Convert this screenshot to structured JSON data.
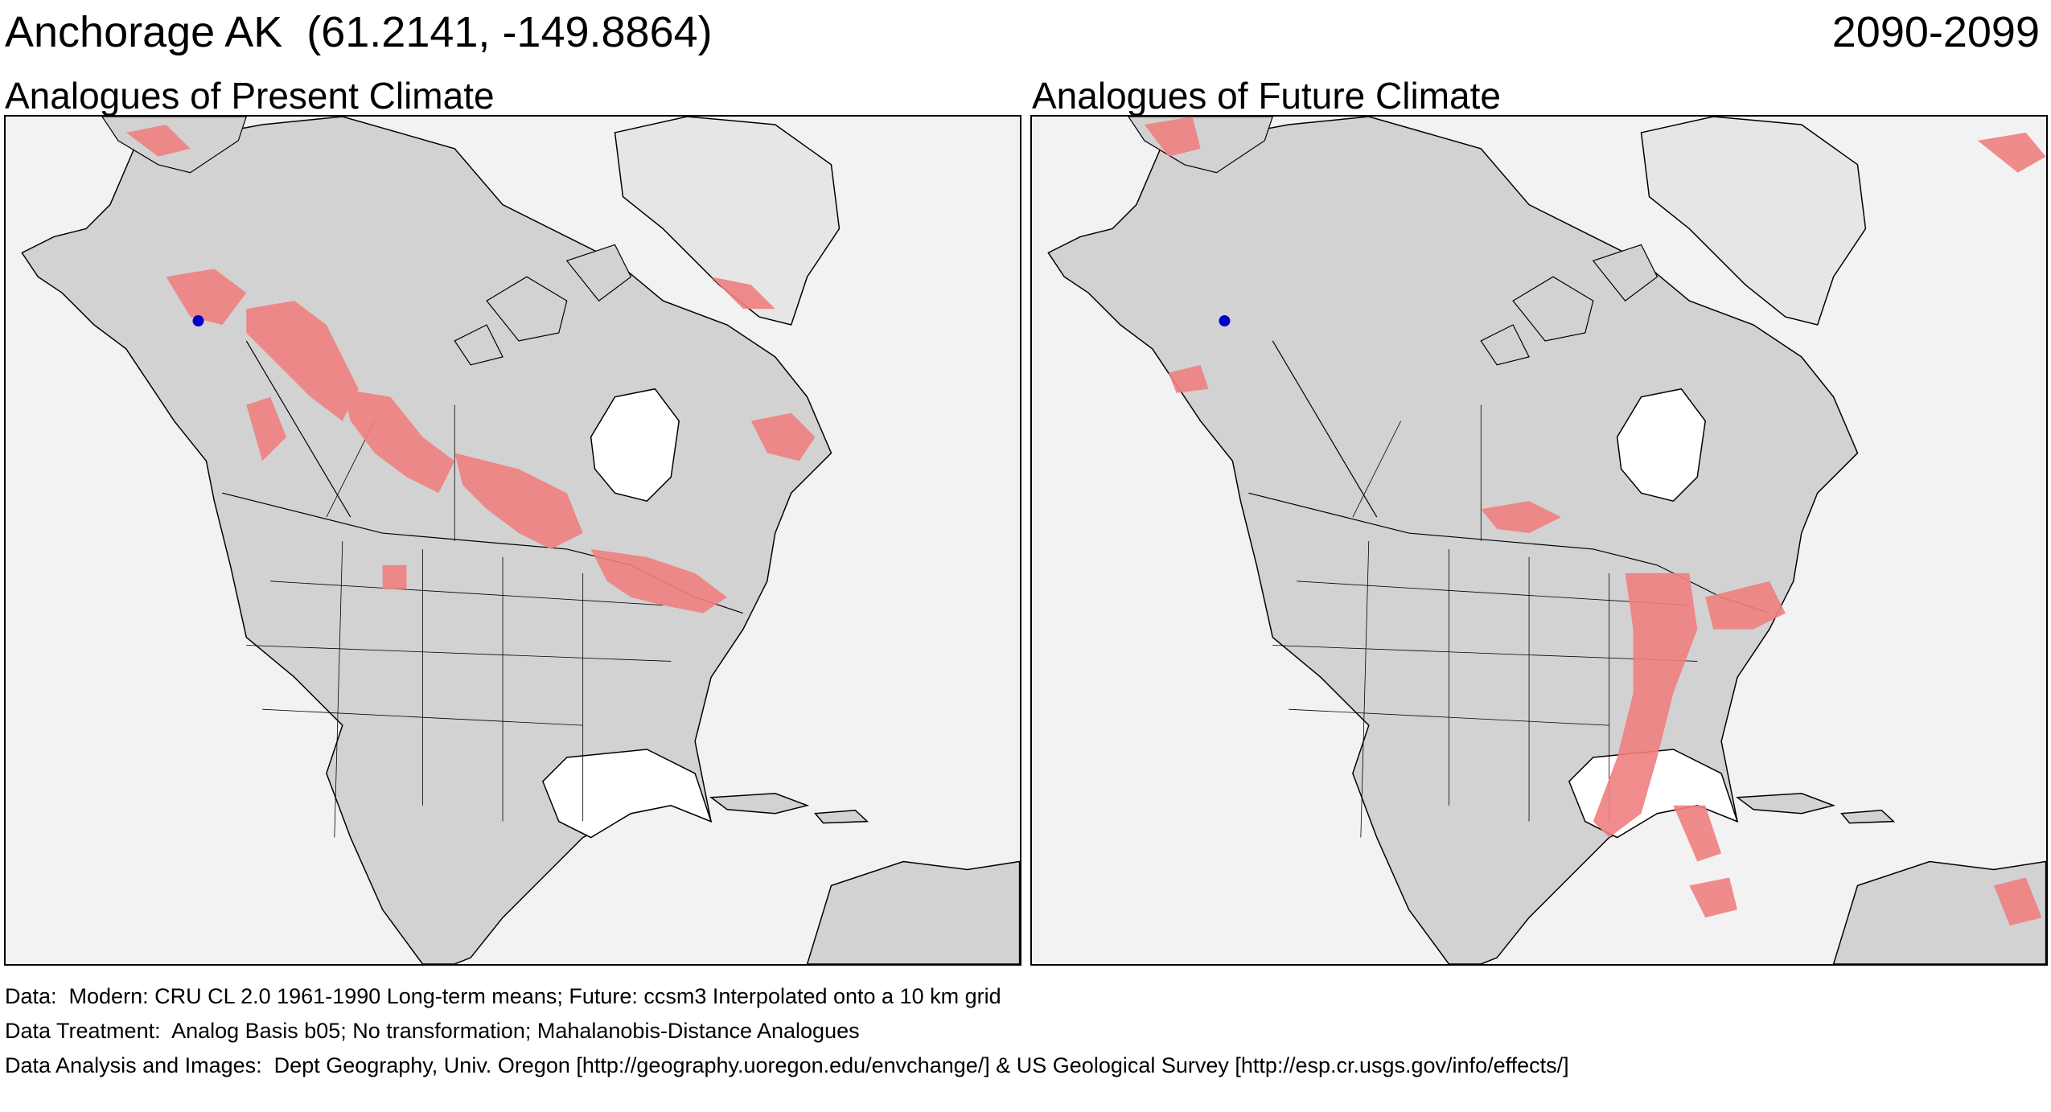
{
  "header": {
    "location": "Anchorage AK  (61.2141, -149.8864)",
    "period": "2090-2099"
  },
  "panels": [
    {
      "title": "Analogues of Present Climate"
    },
    {
      "title": "Analogues of Future Climate"
    }
  ],
  "footer": {
    "data_line": "Data:  Modern: CRU CL 2.0 1961-1990 Long-term means; Future: ccsm3 Interpolated onto a 10 km grid",
    "treatment_line": "Data Treatment:  Analog Basis b05; No transformation; Mahalanobis-Distance Analogues",
    "analysis_line": "Data Analysis and Images:  Dept Geography, Univ. Oregon [http://geography.uoregon.edu/envchange/] & US Geological Survey [http://esp.cr.usgs.gov/info/effects/]"
  },
  "colors": {
    "ocean": "#f2f2f2",
    "land": "#d2d2d2",
    "ice": "#e6e6e6",
    "analogue": "#f08080",
    "analogue_dark": "#e05a5a",
    "site_marker": "#0000cc",
    "border": "#000000"
  }
}
